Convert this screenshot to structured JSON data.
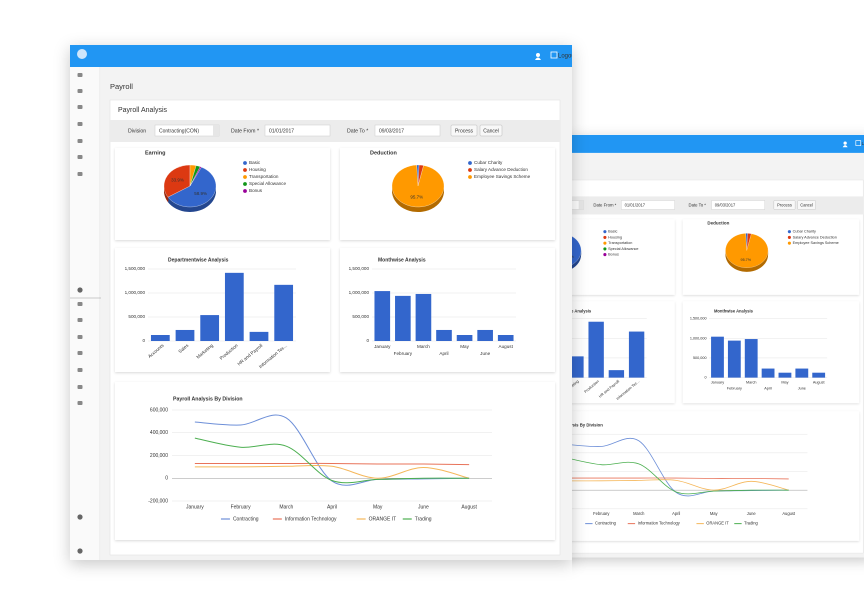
{
  "page": {
    "logout": "Logout",
    "title": "Payroll",
    "panel_title": "Payroll Analysis",
    "filters": {
      "division_label": "Division",
      "division": "Contracting(CON)",
      "date_from_label": "Date From *",
      "date_from": "01/01/2017",
      "date_to_label": "Date To *",
      "date_to": "09/03/2017"
    },
    "buttons": [
      "Process",
      "Cancel"
    ]
  },
  "chart_data": [
    {
      "type": "pie",
      "title": "Earning",
      "categories": [
        "Basic",
        "Housing",
        "Transportation",
        "Special Allowance",
        "Bonus"
      ],
      "values": [
        58.9,
        33.9,
        3.8,
        2.6,
        0.8
      ],
      "value_labels": [
        "58.9%",
        "33.9%",
        null,
        null,
        null
      ],
      "colors": [
        "#3366cc",
        "#dc3912",
        "#ff9900",
        "#109618",
        "#990099"
      ]
    },
    {
      "type": "pie",
      "title": "Deduction",
      "categories": [
        "Cubar Charity",
        "Salary Advance Deduction",
        "Employee Savings Scheme"
      ],
      "values": [
        1.5,
        2.8,
        95.7
      ],
      "value_labels": [
        null,
        null,
        "95.7%"
      ],
      "colors": [
        "#3366cc",
        "#dc3912",
        "#ff9900"
      ]
    },
    {
      "type": "bar",
      "title": "Departmentwise Analysis",
      "categories": [
        "Accounts",
        "Sales",
        "Marketing",
        "Production",
        "HR and Payroll",
        "Information Tec..."
      ],
      "values": [
        125000,
        230000,
        540000,
        1420000,
        190000,
        1170000
      ],
      "color": "#3366cc",
      "ylim": [
        0,
        1500000
      ],
      "yticks": [
        0,
        {
          "value": 500000,
          "label": "500,000"
        },
        {
          "value": 1000000,
          "label": "1,000,000"
        },
        {
          "value": 1500000,
          "label": "1,500,000"
        }
      ],
      "grid": true
    },
    {
      "type": "bar",
      "title": "Monthwise Analysis",
      "categories": [
        "January",
        "February",
        "March",
        "April",
        "May",
        "June",
        "August"
      ],
      "values": [
        1040000,
        940000,
        980000,
        230000,
        125000,
        230000,
        125000
      ],
      "color": "#3366cc",
      "ylim": [
        0,
        1500000
      ],
      "yticks": [
        0,
        {
          "value": 500000,
          "label": "500,000"
        },
        {
          "value": 1000000,
          "label": "1,000,000"
        },
        {
          "value": 1500000,
          "label": "1,500,000"
        }
      ],
      "grid": true
    },
    {
      "type": "line",
      "title": "Payroll Analysis By Division",
      "categories": [
        "January",
        "February",
        "March",
        "April",
        "May",
        "June",
        "August"
      ],
      "series": [
        {
          "name": "Contracting",
          "color": "#6d8fd8",
          "values": [
            494000,
            468000,
            530000,
            -25000,
            -10000,
            -5000,
            0
          ]
        },
        {
          "name": "Information Technology",
          "color": "#e8735a",
          "values": [
            130000,
            130000,
            130000,
            130000,
            125000,
            125000,
            120000
          ]
        },
        {
          "name": "ORANGE IT",
          "color": "#f5b75a",
          "values": [
            100000,
            100000,
            105000,
            105000,
            0,
            95000,
            0
          ]
        },
        {
          "name": "Trading",
          "color": "#4caf50",
          "values": [
            353000,
            273000,
            282000,
            -20000,
            -10000,
            0,
            0
          ]
        }
      ],
      "ylim": [
        -200000,
        600000
      ],
      "yticks": [
        {
          "value": -200000,
          "label": "-200,000"
        },
        0,
        {
          "value": 200000,
          "label": "200,000"
        },
        {
          "value": 400000,
          "label": "400,000"
        },
        {
          "value": 600000,
          "label": "600,000"
        }
      ],
      "grid": true
    }
  ]
}
